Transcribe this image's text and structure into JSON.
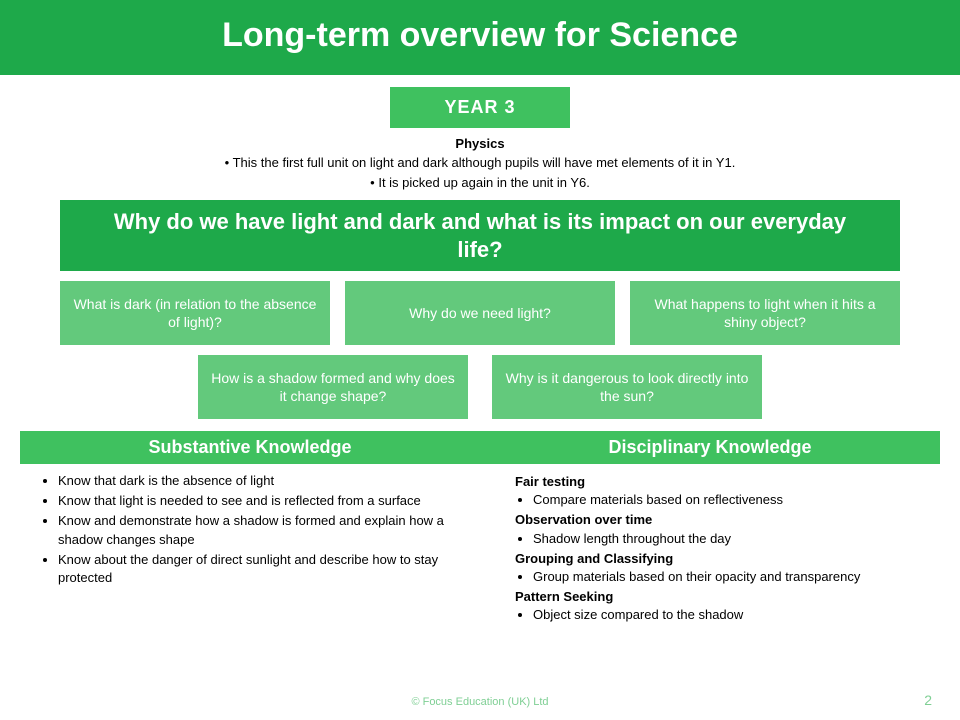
{
  "colors": {
    "brand_green": "#1ea94a",
    "mid_green": "#3fc15f",
    "light_green": "#63c97c",
    "footer_green": "#7fcf94",
    "bg": "#ffffff",
    "text": "#000000"
  },
  "title": "Long-term overview for Science",
  "year_badge": "YEAR 3",
  "subject": "Physics",
  "intro_bullets": [
    "This the first full unit on light and dark although pupils will have met elements of it in Y1.",
    "It is picked up again in the unit in Y6."
  ],
  "main_question": "Why do we have light and dark and what is its impact on our everyday life?",
  "sub_questions_row1": [
    "What is dark (in relation to the absence of light)?",
    "Why do we need light?",
    "What happens to light when it hits a shiny object?"
  ],
  "sub_questions_row2": [
    "How is a shadow formed and why does it change shape?",
    "Why is it dangerous to look directly into the sun?"
  ],
  "knowledge": {
    "substantive_header": "Substantive Knowledge",
    "disciplinary_header": "Disciplinary Knowledge",
    "substantive_items": [
      "Know that dark is the absence of light",
      "Know that light is needed to see and is reflected from a surface",
      "Know and demonstrate how a shadow is formed and explain how a shadow changes shape",
      "Know about the danger of direct sunlight and describe how to stay protected"
    ],
    "disciplinary_groups": [
      {
        "heading": "Fair testing",
        "items": [
          "Compare materials based on reflectiveness"
        ]
      },
      {
        "heading": "Observation over time",
        "items": [
          "Shadow length throughout the day"
        ]
      },
      {
        "heading": "Grouping and Classifying",
        "items": [
          "Group materials based on their opacity and transparency"
        ]
      },
      {
        "heading": "Pattern Seeking",
        "items": [
          "Object size compared to the shadow"
        ]
      }
    ]
  },
  "footer": "© Focus Education (UK) Ltd",
  "page_number": "2"
}
